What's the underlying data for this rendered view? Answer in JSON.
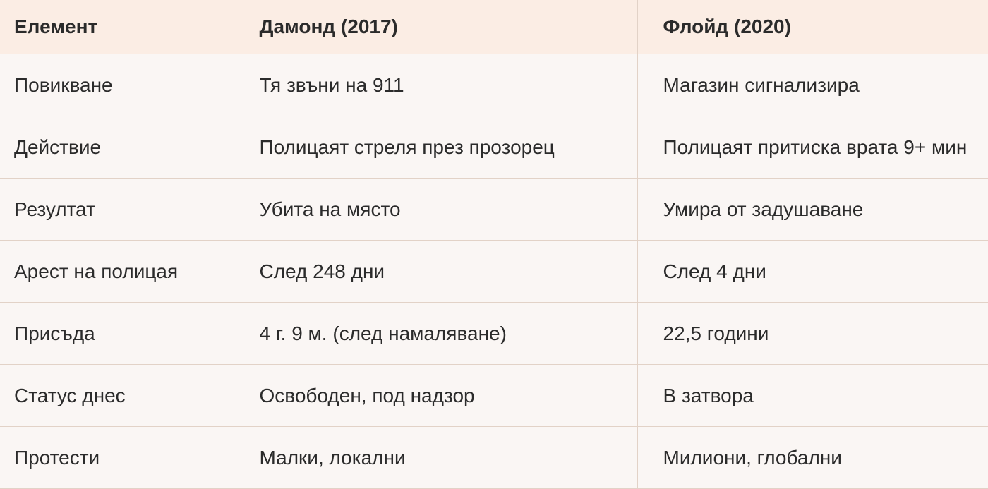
{
  "table": {
    "headers": [
      "Елемент",
      "Дамонд (2017)",
      "Флойд (2020)"
    ],
    "rows": [
      [
        "Повикване",
        "Тя звъни на 911",
        "Магазин сигнализира"
      ],
      [
        "Действие",
        "Полицаят стреля през прозорец",
        "Полицаят притиска врата 9+ мин"
      ],
      [
        "Резултат",
        "Убита на място",
        "Умира от задушаване"
      ],
      [
        "Арест на полицая",
        "След 248 дни",
        "След 4 дни"
      ],
      [
        "Присъда",
        "4 г. 9 м. (след намаляване)",
        "22,5 години"
      ],
      [
        "Статус днес",
        "Освободен, под надзор",
        "В затвора"
      ],
      [
        "Протести",
        "Малки, локални",
        "Милиони, глобални"
      ]
    ]
  }
}
